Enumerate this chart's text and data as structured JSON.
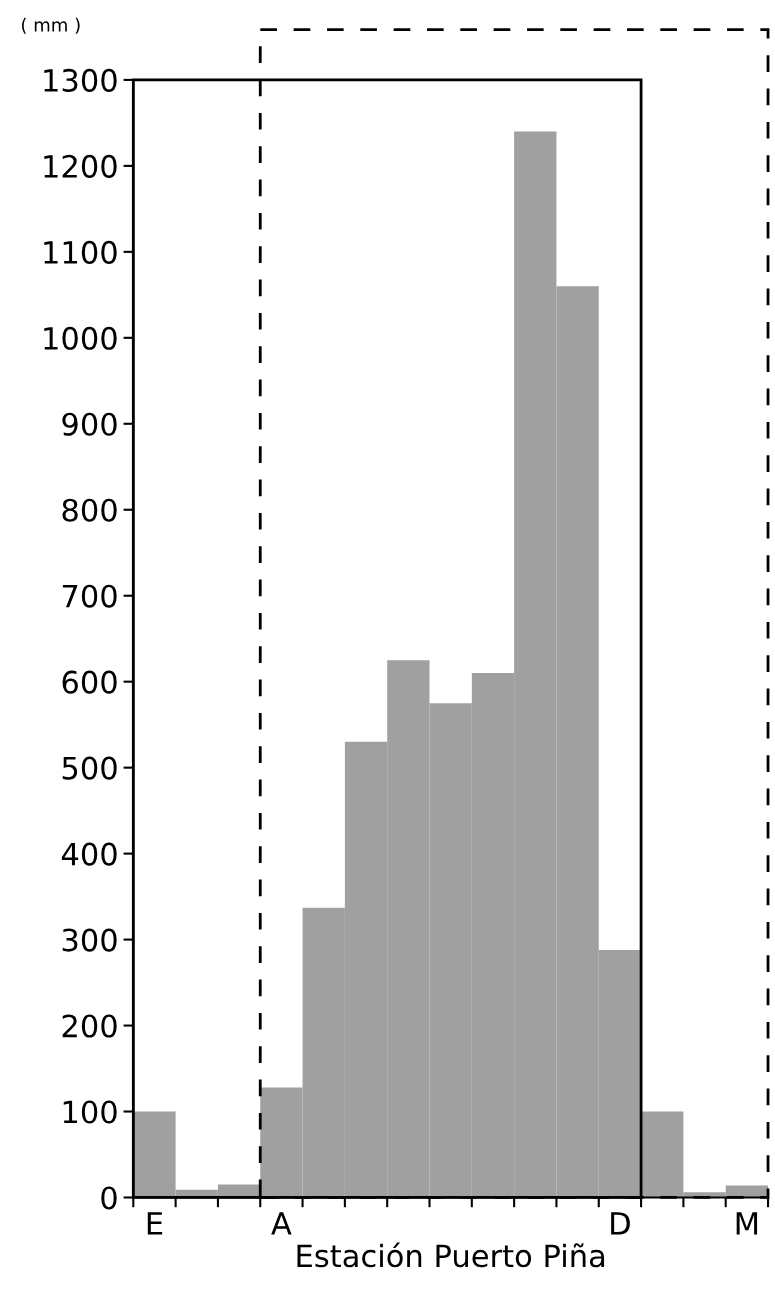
{
  "chart_data": {
    "type": "bar",
    "ylabel": "( mm )",
    "xlabel": "Estación Puerto Piña",
    "categories": [
      "E",
      null,
      null,
      "A",
      null,
      null,
      null,
      null,
      null,
      null,
      null,
      "D",
      null,
      null,
      "M"
    ],
    "values": [
      100,
      9,
      15,
      128,
      337,
      530,
      625,
      575,
      610,
      1240,
      1060,
      288,
      100,
      6,
      14
    ],
    "color": "#a0a0a0",
    "ylim": [
      0,
      1300
    ],
    "yticks": [
      0,
      100,
      200,
      300,
      400,
      500,
      600,
      700,
      800,
      900,
      1000,
      1100,
      1200,
      1300
    ],
    "grid": false,
    "legend": false
  }
}
